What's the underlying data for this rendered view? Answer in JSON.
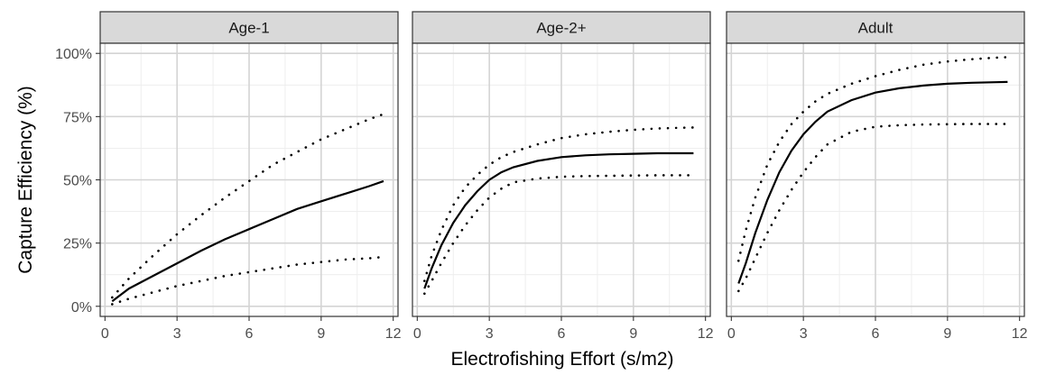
{
  "chart_data": {
    "type": "line",
    "xlabel": "Electrofishing Effort (s/m2)",
    "ylabel": "Capture Efficiency (%)",
    "xlim": [
      -0.2,
      12.2
    ],
    "ylim": [
      -0.04,
      1.04
    ],
    "x_ticks": [
      0,
      3,
      6,
      9,
      12
    ],
    "x_tick_labels": [
      "0",
      "3",
      "6",
      "9",
      "12"
    ],
    "y_ticks": [
      0,
      0.25,
      0.5,
      0.75,
      1.0
    ],
    "y_tick_labels": [
      "0%",
      "25%",
      "50%",
      "75%",
      "100%"
    ],
    "grid": true,
    "facets": [
      {
        "title": "Age-1",
        "x": [
          0.3,
          1,
          2,
          3,
          4,
          5,
          6,
          7,
          8,
          9,
          10,
          11,
          11.6
        ],
        "series": [
          {
            "style": "solid",
            "values": [
              0.02,
              0.07,
              0.12,
              0.17,
              0.22,
              0.265,
              0.305,
              0.345,
              0.385,
              0.415,
              0.445,
              0.475,
              0.495
            ]
          },
          {
            "style": "dotted",
            "values": [
              0.035,
              0.11,
              0.2,
              0.285,
              0.36,
              0.43,
              0.495,
              0.56,
              0.61,
              0.66,
              0.7,
              0.74,
              0.76
            ]
          },
          {
            "style": "dotted",
            "values": [
              0.008,
              0.03,
              0.055,
              0.08,
              0.1,
              0.12,
              0.135,
              0.15,
              0.165,
              0.175,
              0.185,
              0.19,
              0.195
            ]
          }
        ]
      },
      {
        "title": "Age-2+",
        "x": [
          0.3,
          0.6,
          1,
          1.5,
          2,
          2.5,
          3,
          3.5,
          4,
          5,
          6,
          7,
          8,
          9,
          10,
          11,
          11.5
        ],
        "series": [
          {
            "style": "solid",
            "values": [
              0.07,
              0.15,
              0.24,
              0.33,
              0.4,
              0.455,
              0.5,
              0.53,
              0.55,
              0.575,
              0.59,
              0.597,
              0.601,
              0.603,
              0.605,
              0.605,
              0.605
            ]
          },
          {
            "style": "dotted",
            "values": [
              0.1,
              0.2,
              0.3,
              0.4,
              0.47,
              0.52,
              0.56,
              0.59,
              0.61,
              0.64,
              0.665,
              0.68,
              0.69,
              0.698,
              0.703,
              0.706,
              0.707
            ]
          },
          {
            "style": "dotted",
            "values": [
              0.05,
              0.1,
              0.17,
              0.25,
              0.32,
              0.38,
              0.43,
              0.465,
              0.49,
              0.505,
              0.512,
              0.515,
              0.516,
              0.517,
              0.518,
              0.518,
              0.518
            ]
          }
        ]
      },
      {
        "title": "Adult",
        "x": [
          0.3,
          0.6,
          1,
          1.5,
          2,
          2.5,
          3,
          3.5,
          4,
          5,
          6,
          7,
          8,
          9,
          10,
          11,
          11.5
        ],
        "series": [
          {
            "style": "solid",
            "values": [
              0.09,
              0.17,
              0.29,
              0.42,
              0.53,
              0.615,
              0.68,
              0.73,
              0.77,
              0.815,
              0.845,
              0.862,
              0.873,
              0.88,
              0.884,
              0.886,
              0.887
            ]
          },
          {
            "style": "dotted",
            "values": [
              0.18,
              0.3,
              0.43,
              0.56,
              0.65,
              0.72,
              0.77,
              0.81,
              0.84,
              0.88,
              0.91,
              0.935,
              0.955,
              0.968,
              0.977,
              0.983,
              0.985
            ]
          },
          {
            "style": "dotted",
            "values": [
              0.06,
              0.11,
              0.19,
              0.29,
              0.38,
              0.46,
              0.53,
              0.59,
              0.64,
              0.69,
              0.71,
              0.716,
              0.719,
              0.72,
              0.721,
              0.721,
              0.721
            ]
          }
        ]
      }
    ]
  }
}
